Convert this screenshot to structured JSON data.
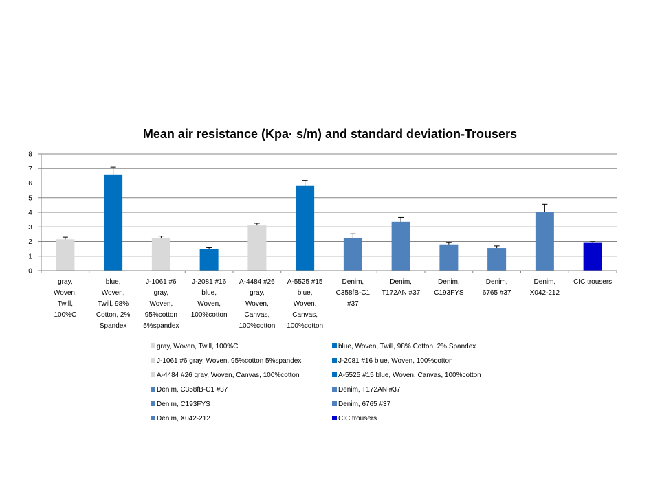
{
  "chart_data": {
    "type": "bar",
    "title": "Mean air resistance (Kpa· s/m) and standard deviation-Trousers",
    "xlabel": "",
    "ylabel": "",
    "ylim": [
      0,
      8
    ],
    "yticks": [
      0,
      1,
      2,
      3,
      4,
      5,
      6,
      7,
      8
    ],
    "grid": true,
    "legend_position": "bottom",
    "categories": [
      [
        "gray,",
        "Woven,",
        "Twill,",
        "100%C"
      ],
      [
        "blue,",
        "Woven,",
        "Twill, 98%",
        "Cotton, 2%",
        "Spandex"
      ],
      [
        "J-1061 #6",
        "gray,",
        "Woven,",
        "95%cotton",
        "5%spandex"
      ],
      [
        "J-2081 #16",
        "blue,",
        "Woven,",
        "100%cotton"
      ],
      [
        "A-4484 #26",
        "gray,",
        "Woven,",
        "Canvas,",
        "100%cotton"
      ],
      [
        "A-5525 #15",
        "blue,",
        "Woven,",
        "Canvas,",
        "100%cotton"
      ],
      [
        "Denim,",
        "C358fB-C1",
        "#37"
      ],
      [
        "Denim,",
        "T172AN #37"
      ],
      [
        "Denim,",
        "C193FYS"
      ],
      [
        "Denim,",
        "6765 #37"
      ],
      [
        "Denim,",
        "X042-212"
      ],
      [
        "CIC trousers"
      ]
    ],
    "series": [
      {
        "name": "gray, Woven, Twill, 100%C",
        "value": 2.15,
        "error": 0.15,
        "color": "#d9d9d9"
      },
      {
        "name": "blue, Woven, Twill, 98% Cotton, 2% Spandex",
        "value": 6.55,
        "error": 0.55,
        "color": "#0070c0"
      },
      {
        "name": "J-1061 #6 gray, Woven, 95%cotton 5%spandex",
        "value": 2.25,
        "error": 0.12,
        "color": "#d9d9d9"
      },
      {
        "name": "J-2081 #16 blue, Woven, 100%cotton",
        "value": 1.5,
        "error": 0.08,
        "color": "#0070c0"
      },
      {
        "name": "A-4484 #26 gray, Woven, Canvas, 100%cotton",
        "value": 3.1,
        "error": 0.15,
        "color": "#d9d9d9"
      },
      {
        "name": "A-5525 #15 blue, Woven, Canvas, 100%cotton",
        "value": 5.8,
        "error": 0.38,
        "color": "#0070c0"
      },
      {
        "name": "Denim, C358fB-C1 #37",
        "value": 2.25,
        "error": 0.28,
        "color": "#4f81bd"
      },
      {
        "name": "Denim, T172AN #37",
        "value": 3.35,
        "error": 0.3,
        "color": "#4f81bd"
      },
      {
        "name": "Denim, C193FYS",
        "value": 1.8,
        "error": 0.12,
        "color": "#4f81bd"
      },
      {
        "name": "Denim, 6765 #37",
        "value": 1.55,
        "error": 0.15,
        "color": "#4f81bd"
      },
      {
        "name": "Denim, X042-212",
        "value": 4.0,
        "error": 0.55,
        "color": "#4f81bd"
      },
      {
        "name": "CIC trousers",
        "value": 1.9,
        "error": 0.08,
        "color": "#0000cc"
      }
    ]
  }
}
